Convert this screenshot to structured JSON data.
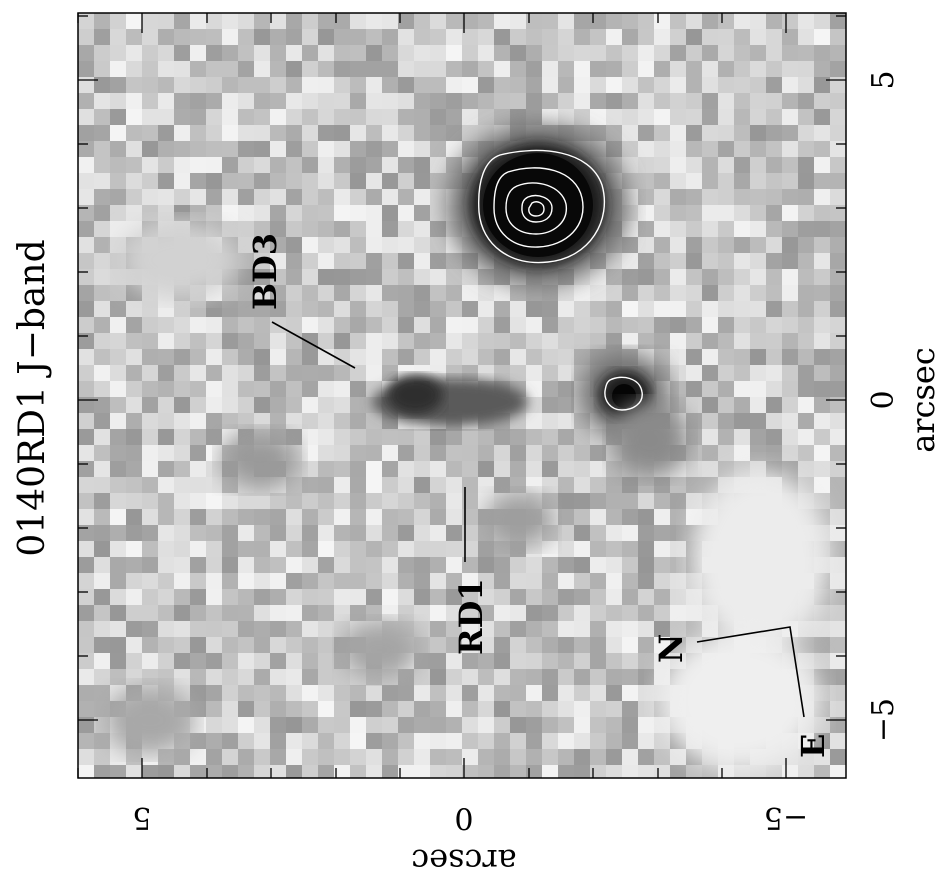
{
  "title": "0140RD1 J−band",
  "axes": {
    "right_label": "arcsec",
    "bottom_label": "arcsec",
    "right_ticks": [
      "5",
      "0",
      "−5"
    ],
    "bottom_ticks": [
      "5",
      "0",
      "−5"
    ]
  },
  "annotations": {
    "bd3": "BD3",
    "rd1": "RD1",
    "north": "N",
    "east": "E"
  },
  "colors": {
    "background_noise_light": "#d8d8d8",
    "background_noise_dark": "#8a8a8a",
    "source": "#111111",
    "contour": "#ffffff"
  }
}
